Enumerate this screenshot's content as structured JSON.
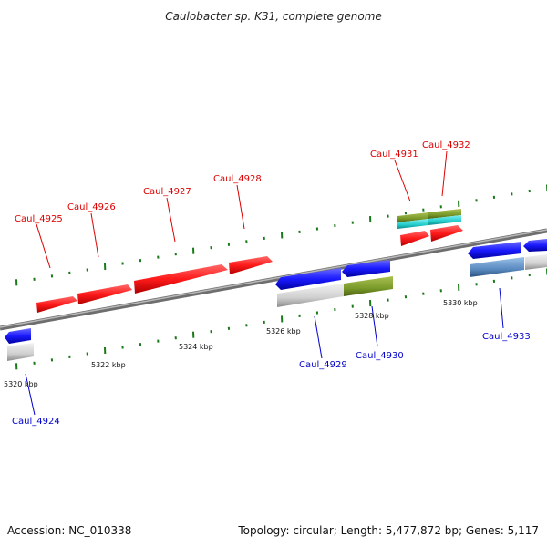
{
  "title": "Caulobacter sp. K31, complete genome",
  "footer": {
    "accession": "Accession: NC_010338",
    "summary": "Topology: circular; Length: 5,477,872 bp; Genes: 5,117"
  },
  "colors": {
    "forward_gene": "#ff1a1a",
    "reverse_gene": "#1a1aff",
    "forward_label": "#dd0000",
    "reverse_label": "#0000cc",
    "backbone": "#8a8a8a",
    "tick_dot": "#1a7a1a",
    "cds_grey": "#cfcfcf",
    "cds_olive": "#7a9a2a",
    "cds_cyan": "#22cccc",
    "cds_steel": "#5a8ac0"
  },
  "forward_labels": [
    "Caul_4925",
    "Caul_4926",
    "Caul_4927",
    "Caul_4928",
    "Caul_4931",
    "Caul_4932"
  ],
  "reverse_labels": [
    "Caul_4924",
    "Caul_4929",
    "Caul_4930",
    "Caul_4933"
  ],
  "ticks": [
    "5320 kbp",
    "5322 kbp",
    "5324 kbp",
    "5326 kbp",
    "5328 kbp",
    "5330 kbp"
  ]
}
